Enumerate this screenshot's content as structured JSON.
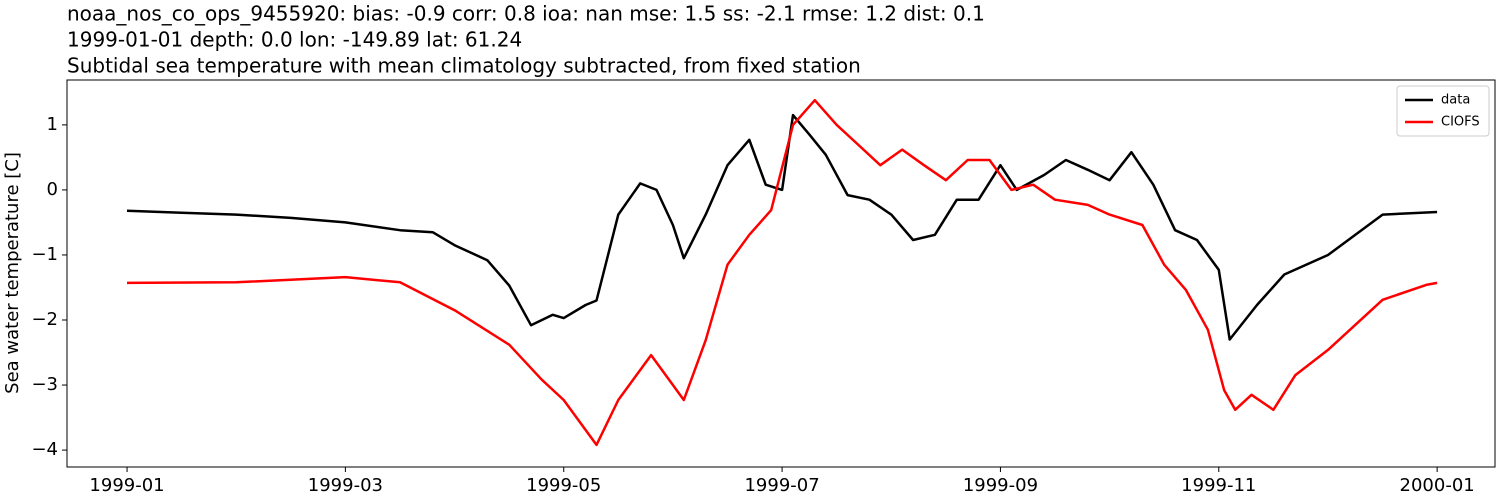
{
  "chart_data": {
    "type": "line",
    "title": "noaa_nos_co_ops_9455920: bias: -0.9  corr: 0.8  ioa: nan  mse: 1.5  ss: -2.1  rmse: 1.2  dist: 0.1",
    "subtitle": "1999-01-01 depth: 0.0 lon: -149.89 lat: 61.24",
    "subtitle2": "Subtidal sea temperature with mean climatology subtracted, from fixed station",
    "ylabel": "Sea water temperature [C]",
    "xlim": [
      -0.55,
      12.53
    ],
    "xticks": [
      {
        "value": 0,
        "label": "1999-01"
      },
      {
        "value": 2,
        "label": "1999-03"
      },
      {
        "value": 4,
        "label": "1999-05"
      },
      {
        "value": 6,
        "label": "1999-07"
      },
      {
        "value": 8,
        "label": "1999-09"
      },
      {
        "value": 10,
        "label": "1999-11"
      },
      {
        "value": 12,
        "label": "2000-01"
      }
    ],
    "ylim": [
      -4.26,
      1.69
    ],
    "yticks": [
      {
        "value": -4,
        "label": "−4"
      },
      {
        "value": -3,
        "label": "−3"
      },
      {
        "value": -2,
        "label": "−2"
      },
      {
        "value": -1,
        "label": "−1"
      },
      0,
      1
    ],
    "legend": "upper right",
    "series": [
      {
        "name": "data",
        "color": "#000000",
        "x": [
          0,
          0.5,
          1,
          1.5,
          2,
          2.5,
          2.8,
          3,
          3.3,
          3.5,
          3.7,
          3.9,
          4,
          4.2,
          4.3,
          4.5,
          4.7,
          4.85,
          5,
          5.1,
          5.3,
          5.5,
          5.7,
          5.85,
          6,
          6.1,
          6.25,
          6.4,
          6.6,
          6.8,
          7,
          7.2,
          7.4,
          7.6,
          7.8,
          8,
          8.15,
          8.4,
          8.6,
          8.8,
          9,
          9.2,
          9.4,
          9.6,
          9.8,
          10,
          10.1,
          10.35,
          10.6,
          11,
          11.5,
          12
        ],
        "values": [
          -0.32,
          -0.35,
          -0.38,
          -0.43,
          -0.5,
          -0.62,
          -0.65,
          -0.85,
          -1.08,
          -1.47,
          -2.08,
          -1.92,
          -1.97,
          -1.77,
          -1.7,
          -0.38,
          0.1,
          0,
          -0.54,
          -1.05,
          -0.38,
          0.38,
          0.77,
          0.08,
          0,
          1.15,
          0.85,
          0.54,
          -0.08,
          -0.15,
          -0.38,
          -0.77,
          -0.69,
          -0.15,
          -0.15,
          0.38,
          0,
          0.23,
          0.46,
          0.31,
          0.15,
          0.58,
          0.08,
          -0.62,
          -0.77,
          -1.23,
          -2.3,
          -1.77,
          -1.3,
          -1.0,
          -0.38,
          -0.34
        ]
      },
      {
        "name": "CIOFS",
        "color": "#ff0000",
        "x": [
          0,
          1,
          2,
          2.5,
          3,
          3.5,
          3.8,
          4,
          4.3,
          4.5,
          4.8,
          5,
          5.1,
          5.3,
          5.5,
          5.7,
          5.9,
          6.1,
          6.3,
          6.5,
          6.7,
          6.9,
          7.1,
          7.3,
          7.5,
          7.7,
          7.9,
          8.1,
          8.3,
          8.5,
          8.8,
          9,
          9.3,
          9.5,
          9.7,
          9.9,
          10.05,
          10.15,
          10.3,
          10.5,
          10.7,
          11,
          11.5,
          11.9,
          12
        ],
        "values": [
          -1.43,
          -1.42,
          -1.34,
          -1.42,
          -1.85,
          -2.38,
          -2.92,
          -3.23,
          -3.92,
          -3.23,
          -2.54,
          -3.0,
          -3.23,
          -2.31,
          -1.15,
          -0.69,
          -0.31,
          1.0,
          1.38,
          1.0,
          0.69,
          0.38,
          0.62,
          0.38,
          0.15,
          0.46,
          0.46,
          0,
          0.08,
          -0.15,
          -0.23,
          -0.38,
          -0.54,
          -1.15,
          -1.54,
          -2.15,
          -3.08,
          -3.38,
          -3.15,
          -3.38,
          -2.85,
          -2.46,
          -1.69,
          -1.46,
          -1.43
        ]
      }
    ]
  }
}
